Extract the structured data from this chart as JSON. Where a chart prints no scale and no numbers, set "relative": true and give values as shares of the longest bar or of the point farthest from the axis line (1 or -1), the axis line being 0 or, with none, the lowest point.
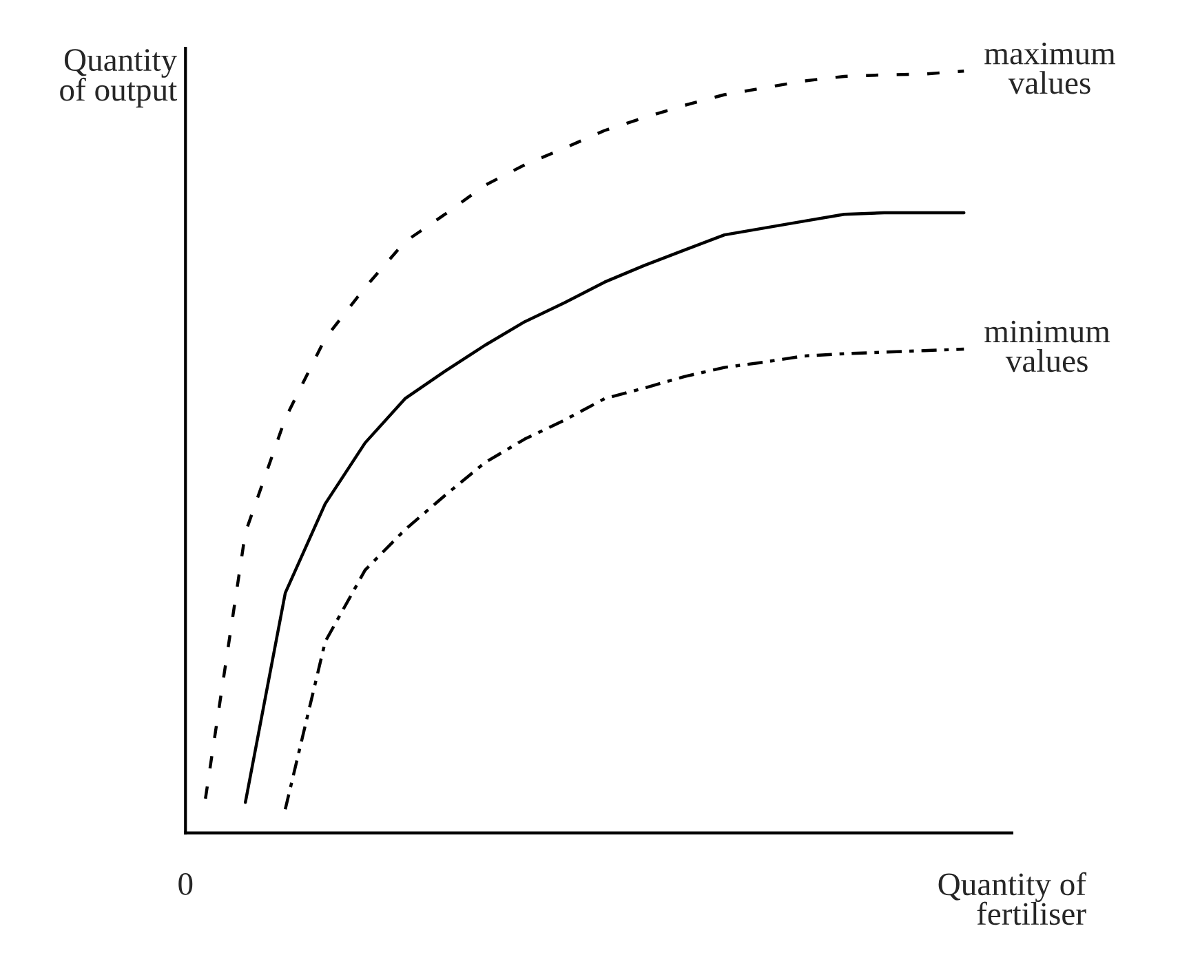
{
  "chart_data": {
    "type": "line",
    "relative": true,
    "xlabel": "Quantity of\nfertiliser",
    "ylabel": "Quantity\nof output",
    "annotations": [
      "0"
    ],
    "legend": false,
    "marker": "none",
    "categories": [
      null,
      null,
      null,
      null,
      null,
      null,
      null,
      null,
      null,
      null,
      null,
      null,
      null,
      null,
      null,
      null,
      null,
      null,
      null,
      null
    ],
    "series": [
      {
        "name": "maximum values",
        "color": "#000000",
        "line_style": "dashed",
        "values": [
          0.045,
          0.394,
          0.544,
          0.649,
          0.716,
          0.776,
          0.812,
          0.85,
          0.877,
          0.899,
          0.922,
          0.939,
          0.955,
          0.969,
          0.978,
          0.987,
          0.993,
          0.995,
          0.996,
          1.0
        ]
      },
      {
        "color": "#000000",
        "line_style": "solid",
        "values": [
          null,
          0.04,
          0.315,
          0.432,
          0.512,
          0.57,
          0.606,
          0.64,
          0.671,
          0.696,
          0.723,
          0.745,
          0.765,
          0.785,
          0.794,
          0.803,
          0.812,
          0.814,
          0.814,
          0.814
        ]
      },
      {
        "name": "minimum values",
        "color": "#000000",
        "line_style": "dashdot",
        "values": [
          null,
          null,
          0.031,
          0.251,
          0.345,
          0.398,
          0.443,
          0.486,
          0.517,
          0.542,
          0.57,
          0.584,
          0.599,
          0.611,
          0.618,
          0.626,
          0.629,
          0.631,
          0.633,
          0.635
        ]
      }
    ]
  }
}
